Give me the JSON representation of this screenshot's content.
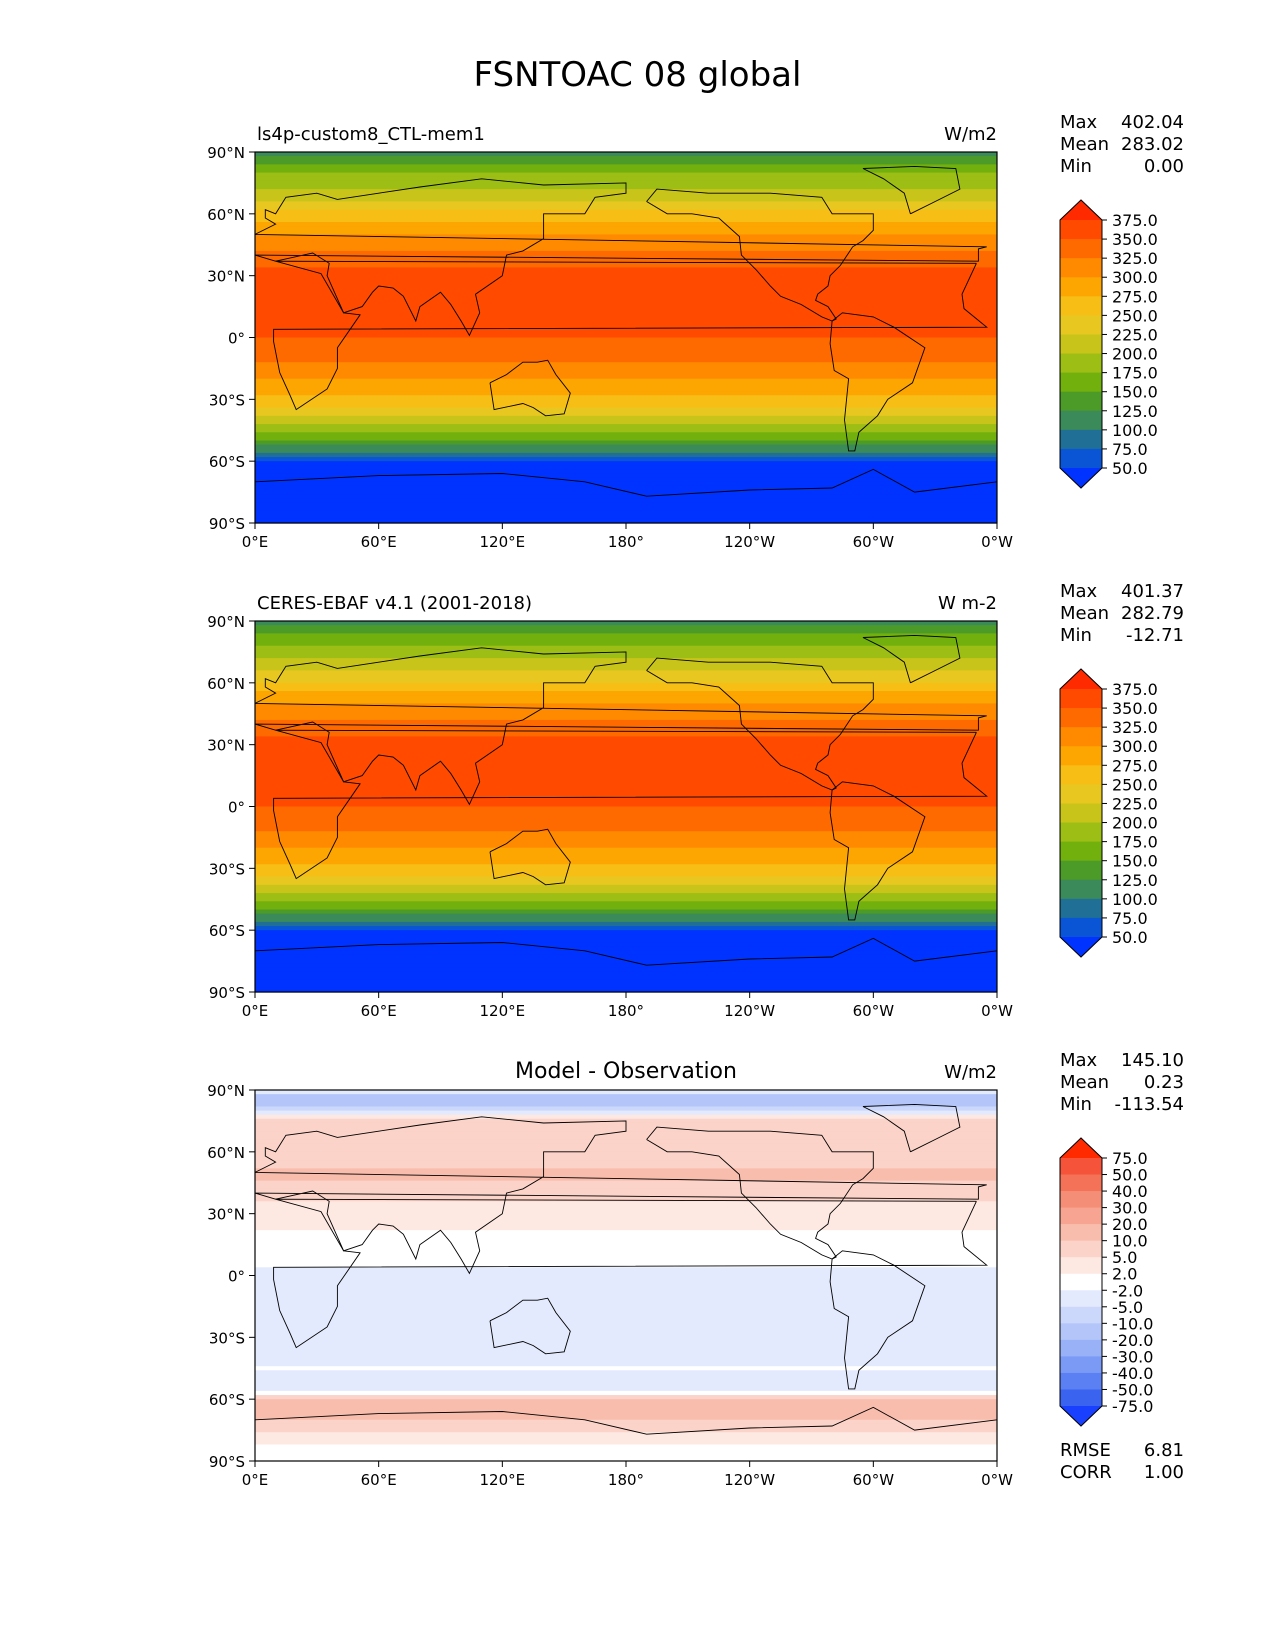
{
  "page": {
    "title": "FSNTOAC 08 global"
  },
  "axes": {
    "lat_ticks": [
      "90°N",
      "60°N",
      "30°N",
      "0°",
      "30°S",
      "60°S",
      "90°S"
    ],
    "lon_ticks": [
      "0°E",
      "60°E",
      "120°E",
      "180°",
      "120°W",
      "60°W",
      "0°W"
    ]
  },
  "chart_data": [
    {
      "type": "heatmap",
      "panel": "model",
      "left_title": "ls4p-custom8_CTL-mem1",
      "right_title": "W/m2",
      "center_title": "",
      "stats": [
        {
          "label": "Max",
          "value": "402.04"
        },
        {
          "label": "Mean",
          "value": "283.02"
        },
        {
          "label": "Min",
          "value": "0.00"
        }
      ],
      "colorbar_labels": [
        "375.0",
        "350.0",
        "325.0",
        "300.0",
        "275.0",
        "250.0",
        "225.0",
        "200.0",
        "175.0",
        "150.0",
        "125.0",
        "100.0",
        "75.0",
        "50.0"
      ],
      "colorbar_colors": [
        "#ff2a00",
        "#ff4a00",
        "#ff6a00",
        "#ff8a00",
        "#fda500",
        "#f7be16",
        "#e8c820",
        "#c9c41a",
        "#9dbe14",
        "#72b00e",
        "#4c9a28",
        "#3a8a5a",
        "#1f6f96",
        "#0a55d6",
        "#0033ff"
      ],
      "field_profile": [
        [
          90,
          110
        ],
        [
          80,
          175
        ],
        [
          70,
          210
        ],
        [
          60,
          255
        ],
        [
          50,
          300
        ],
        [
          40,
          335
        ],
        [
          30,
          360
        ],
        [
          20,
          375
        ],
        [
          10,
          372
        ],
        [
          0,
          350
        ],
        [
          -10,
          335
        ],
        [
          -20,
          300
        ],
        [
          -30,
          265
        ],
        [
          -40,
          215
        ],
        [
          -50,
          150
        ],
        [
          -55,
          100
        ],
        [
          -60,
          40
        ],
        [
          -90,
          10
        ]
      ],
      "xlim": [
        0,
        360
      ],
      "ylim": [
        -90,
        90
      ]
    },
    {
      "type": "heatmap",
      "panel": "observation",
      "left_title": "CERES-EBAF v4.1 (2001-2018)",
      "right_title": "W m-2",
      "center_title": "",
      "stats": [
        {
          "label": "Max",
          "value": "401.37"
        },
        {
          "label": "Mean",
          "value": "282.79"
        },
        {
          "label": "Min",
          "value": "-12.71"
        }
      ],
      "colorbar_labels": [
        "375.0",
        "350.0",
        "325.0",
        "300.0",
        "275.0",
        "250.0",
        "225.0",
        "200.0",
        "175.0",
        "150.0",
        "125.0",
        "100.0",
        "75.0",
        "50.0"
      ],
      "colorbar_colors": [
        "#ff2a00",
        "#ff4a00",
        "#ff6a00",
        "#ff8a00",
        "#fda500",
        "#f7be16",
        "#e8c820",
        "#c9c41a",
        "#9dbe14",
        "#72b00e",
        "#4c9a28",
        "#3a8a5a",
        "#1f6f96",
        "#0a55d6",
        "#0033ff"
      ],
      "field_profile": [
        [
          90,
          110
        ],
        [
          80,
          170
        ],
        [
          70,
          205
        ],
        [
          60,
          250
        ],
        [
          50,
          300
        ],
        [
          40,
          335
        ],
        [
          30,
          360
        ],
        [
          20,
          375
        ],
        [
          10,
          372
        ],
        [
          0,
          350
        ],
        [
          -10,
          335
        ],
        [
          -20,
          300
        ],
        [
          -30,
          265
        ],
        [
          -40,
          215
        ],
        [
          -50,
          150
        ],
        [
          -55,
          100
        ],
        [
          -60,
          40
        ],
        [
          -90,
          10
        ]
      ],
      "xlim": [
        0,
        360
      ],
      "ylim": [
        -90,
        90
      ]
    },
    {
      "type": "heatmap",
      "panel": "difference",
      "left_title": "",
      "right_title": "W/m2",
      "center_title": "Model - Observation",
      "stats": [
        {
          "label": "Max",
          "value": "145.10"
        },
        {
          "label": "Mean",
          "value": "0.23"
        },
        {
          "label": "Min",
          "value": "-113.54"
        }
      ],
      "colorbar_labels": [
        "75.0",
        "50.0",
        "40.0",
        "30.0",
        "20.0",
        "10.0",
        "5.0",
        "2.0",
        "-2.0",
        "-5.0",
        "-10.0",
        "-20.0",
        "-30.0",
        "-40.0",
        "-50.0",
        "-75.0"
      ],
      "colorbar_colors": [
        "#ff2a00",
        "#f6543a",
        "#f47358",
        "#f58e76",
        "#f7a592",
        "#f9bdad",
        "#fbd3c8",
        "#fde8e2",
        "#ffffff",
        "#e3eafd",
        "#ccd8fb",
        "#b4c6f9",
        "#98b1f7",
        "#7a9af5",
        "#5a80f3",
        "#3a64f0",
        "#1a40ff"
      ],
      "field_profile": [
        [
          90,
          0
        ],
        [
          85,
          -20
        ],
        [
          75,
          8
        ],
        [
          60,
          5
        ],
        [
          50,
          12
        ],
        [
          40,
          6
        ],
        [
          30,
          3
        ],
        [
          15,
          1
        ],
        [
          0,
          -3
        ],
        [
          -15,
          -4
        ],
        [
          -30,
          -3
        ],
        [
          -45,
          -2
        ],
        [
          -55,
          -4
        ],
        [
          -62,
          15
        ],
        [
          -70,
          10
        ],
        [
          -78,
          3
        ],
        [
          -90,
          0
        ]
      ],
      "xlim": [
        0,
        360
      ],
      "ylim": [
        -90,
        90
      ],
      "extra_stats": [
        {
          "label": "RMSE",
          "value": "6.81"
        },
        {
          "label": "CORR",
          "value": "1.00"
        }
      ]
    }
  ]
}
